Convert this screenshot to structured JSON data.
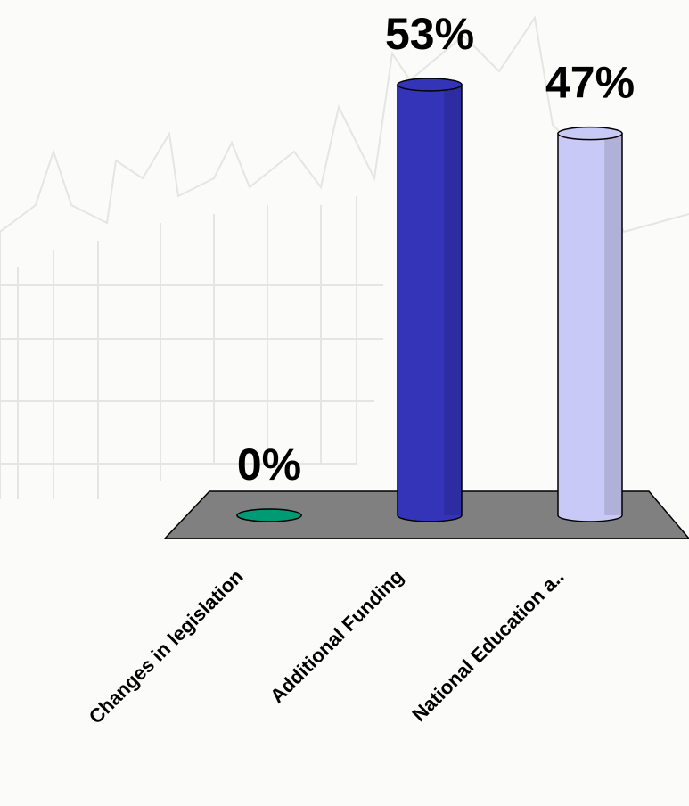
{
  "chart_data": {
    "type": "bar3d",
    "categories": [
      "Changes in legislation",
      "Additional Funding",
      "National Education a.."
    ],
    "values": [
      0,
      53,
      47
    ],
    "value_labels": [
      "0%",
      "53%",
      "47%"
    ],
    "colors": [
      "#009a74",
      "#3434b8",
      "#c9c9f7"
    ],
    "floor_color": "#808080"
  }
}
